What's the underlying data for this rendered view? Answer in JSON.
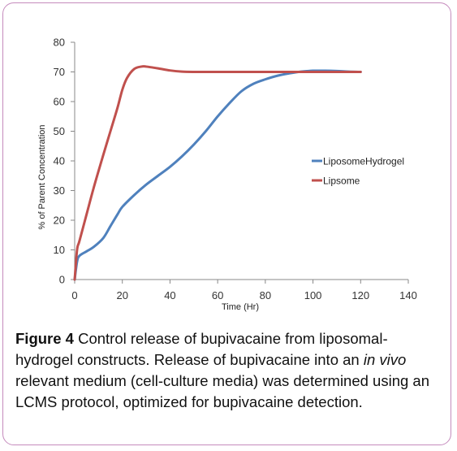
{
  "chart_data": {
    "type": "line",
    "xlabel": "Time (Hr)",
    "ylabel": "% of Parent Concentration",
    "xlim": [
      0,
      140
    ],
    "ylim": [
      0,
      80
    ],
    "xticks": [
      0,
      20,
      40,
      60,
      80,
      100,
      120,
      140
    ],
    "yticks": [
      0,
      10,
      20,
      30,
      40,
      50,
      60,
      70,
      80
    ],
    "grid": false,
    "legend_position": "right",
    "series": [
      {
        "name": "LiposomeHydrogel",
        "color": "#4f81bd",
        "x": [
          0,
          1,
          2,
          5,
          8,
          12,
          15,
          18,
          20,
          25,
          30,
          35,
          40,
          45,
          50,
          55,
          60,
          65,
          70,
          75,
          80,
          85,
          90,
          95,
          100,
          105,
          110,
          115,
          120
        ],
        "y": [
          0,
          6,
          8,
          9.5,
          11,
          14,
          18,
          22,
          24.5,
          28.5,
          32,
          35,
          38,
          41.5,
          45.5,
          50,
          55,
          59.5,
          63.5,
          66,
          67.5,
          68.7,
          69.5,
          70.1,
          70.4,
          70.4,
          70.3,
          70.1,
          70
        ]
      },
      {
        "name": "Lipsome",
        "color": "#c0504d",
        "x": [
          0,
          1,
          2,
          5,
          8,
          12,
          15,
          18,
          20,
          22,
          25,
          28,
          30,
          35,
          40,
          45,
          50,
          60,
          70,
          80,
          90,
          100,
          110,
          120
        ],
        "y": [
          0,
          10,
          13,
          22,
          31,
          42,
          50,
          58,
          64,
          68,
          71,
          71.8,
          71.8,
          71.2,
          70.5,
          70.1,
          70,
          70,
          70,
          70,
          70,
          70,
          70,
          70
        ]
      }
    ]
  },
  "caption": {
    "label": "Figure 4",
    "text_before": " Control release of bupivacaine from liposomal-hydrogel constructs. Release of bupivacaine into an ",
    "italic": "in vivo",
    "text_after": " relevant medium (cell-culture media) was determined using an LCMS protocol, optimized for bupivacaine detection."
  }
}
